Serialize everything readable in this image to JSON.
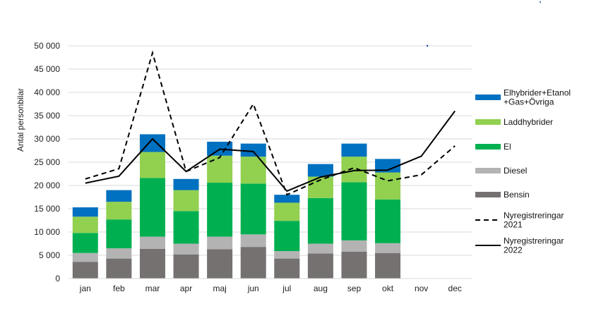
{
  "chart_data": {
    "type": "bar",
    "stacked": true,
    "ylabel": "Antal personbilar",
    "ylim": [
      0,
      50000
    ],
    "yticks": [
      0,
      5000,
      10000,
      15000,
      20000,
      25000,
      30000,
      35000,
      40000,
      45000,
      50000
    ],
    "ytick_labels": [
      "0",
      "5 000",
      "10 000",
      "15 000",
      "20 000",
      "25 000",
      "30 000",
      "35 000",
      "40 000",
      "45 000",
      "50 000"
    ],
    "grid": true,
    "legend_position": "right",
    "categories": [
      "jan",
      "feb",
      "mar",
      "apr",
      "maj",
      "jun",
      "jul",
      "aug",
      "sep",
      "okt",
      "nov",
      "dec"
    ],
    "series": [
      {
        "name": "Bensin",
        "kind": "bar",
        "color": "#767171",
        "values": [
          3600,
          4300,
          6400,
          5200,
          6300,
          6800,
          4300,
          5400,
          5800,
          5500,
          null,
          null
        ]
      },
      {
        "name": "Diesel",
        "kind": "bar",
        "color": "#b3b3b3",
        "values": [
          1900,
          2200,
          2600,
          2300,
          2700,
          2700,
          1600,
          2100,
          2400,
          2100,
          null,
          null
        ]
      },
      {
        "name": "El",
        "kind": "bar",
        "color": "#00b050",
        "values": [
          4300,
          6200,
          12600,
          7000,
          11600,
          10900,
          6500,
          9800,
          12500,
          9400,
          null,
          null
        ]
      },
      {
        "name": "Laddhybrider",
        "kind": "bar",
        "color": "#92d050",
        "values": [
          3500,
          3800,
          5600,
          4500,
          5800,
          5800,
          3900,
          4600,
          5500,
          5800,
          null,
          null
        ]
      },
      {
        "name": "Elhybrider+Etanol +Gas+Övriga",
        "kind": "bar",
        "color": "#0070c0",
        "legend_lines": [
          "Elhybrider+Etanol",
          "+Gas+Övriga"
        ],
        "values": [
          2000,
          2500,
          3800,
          2400,
          3000,
          2800,
          1700,
          2700,
          2800,
          2900,
          null,
          null
        ]
      },
      {
        "name": "Nyregistreringar 2021",
        "kind": "line",
        "style": "dashed",
        "color": "#000000",
        "legend_lines": [
          "Nyregistreringar",
          "2021"
        ],
        "values": [
          21400,
          23600,
          48500,
          23000,
          26000,
          37500,
          18000,
          21200,
          23800,
          21000,
          22300,
          28500
        ]
      },
      {
        "name": "Nyregistreringar 2022",
        "kind": "line",
        "style": "solid",
        "color": "#000000",
        "legend_lines": [
          "Nyregistreringar",
          "2022"
        ],
        "values": [
          20500,
          22000,
          30000,
          23000,
          27800,
          27300,
          18800,
          21800,
          23200,
          23300,
          26300,
          36000
        ]
      }
    ]
  }
}
